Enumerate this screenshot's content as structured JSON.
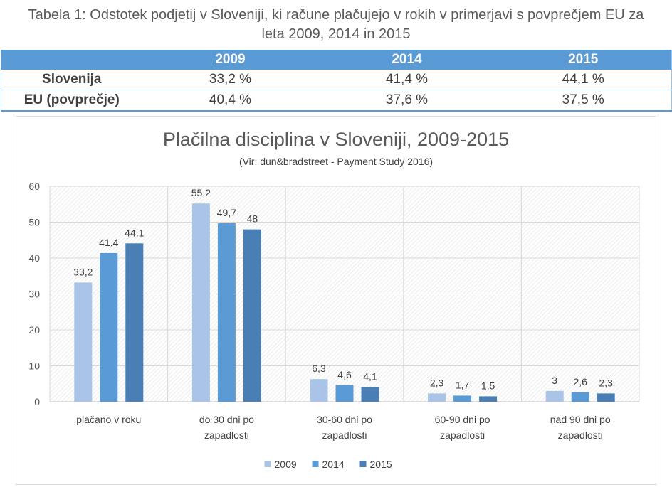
{
  "caption": {
    "line1": "Tabela 1: Odstotek podjetij v Sloveniji, ki račune plačujejo v rokih v primerjavi s povprečjem EU za",
    "line2": "leta 2009, 2014 in 2015"
  },
  "summary_table": {
    "columns": [
      "",
      "2009",
      "2014",
      "2015"
    ],
    "rows": [
      {
        "label": "Slovenija",
        "cells": [
          "33,2 %",
          "41,4 %",
          "44,1 %"
        ]
      },
      {
        "label": "EU (povprečje)",
        "cells": [
          "40,4 %",
          "37,6 %",
          "37,5 %"
        ]
      }
    ]
  },
  "chart_data": {
    "type": "bar",
    "title": "Plačilna disciplina v Sloveniji, 2009-2015",
    "subtitle": "(Vir: dun&bradstreet - Payment Study 2016)",
    "xlabel": "",
    "ylabel": "",
    "ylim": [
      0,
      60
    ],
    "yticks": [
      "0",
      "10",
      "20",
      "30",
      "40",
      "50",
      "60"
    ],
    "grid": true,
    "legend": "bottom-center",
    "categories": [
      [
        "plačano v roku"
      ],
      [
        "do 30 dni po",
        "zapadlosti"
      ],
      [
        "30-60 dni po",
        "zapadlosti"
      ],
      [
        "60-90 dni po",
        "zapadlosti"
      ],
      [
        "nad 90 dni po",
        "zapadlosti"
      ]
    ],
    "series": [
      {
        "name": "2009",
        "color": "#a9c4e6",
        "values": [
          33.2,
          55.2,
          6.3,
          2.3,
          3
        ],
        "labels": [
          "33,2",
          "55,2",
          "6,3",
          "2,3",
          "3"
        ]
      },
      {
        "name": "2014",
        "color": "#5b9bd5",
        "values": [
          41.4,
          49.7,
          4.6,
          1.7,
          2.6
        ],
        "labels": [
          "41,4",
          "49,7",
          "4,6",
          "1,7",
          "2,6"
        ]
      },
      {
        "name": "2015",
        "color": "#4a7fb5",
        "values": [
          44.1,
          48,
          4.1,
          1.5,
          2.3
        ],
        "labels": [
          "44,1",
          "48",
          "4,1",
          "1,5",
          "2,3"
        ]
      }
    ]
  }
}
